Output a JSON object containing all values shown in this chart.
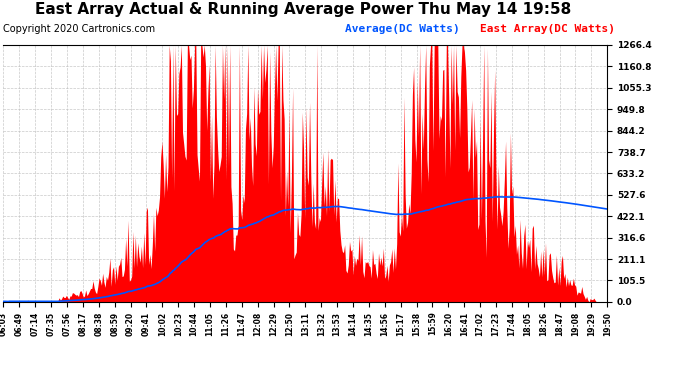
{
  "title": "East Array Actual & Running Average Power Thu May 14 19:58",
  "copyright": "Copyright 2020 Cartronics.com",
  "legend_avg": "Average(DC Watts)",
  "legend_east": "East Array(DC Watts)",
  "ylabel_right_ticks": [
    0.0,
    105.5,
    211.1,
    316.6,
    422.1,
    527.6,
    633.2,
    738.7,
    844.2,
    949.8,
    1055.3,
    1160.8,
    1266.4
  ],
  "ymax": 1266.4,
  "ymin": 0.0,
  "bg_color": "#ffffff",
  "plot_bg": "#ffffff",
  "grid_color": "#bbbbbb",
  "red_color": "#ff0000",
  "blue_color": "#0000ff",
  "avg_color": "#0055ff",
  "title_fontsize": 11,
  "copyright_fontsize": 7,
  "legend_fontsize": 8
}
